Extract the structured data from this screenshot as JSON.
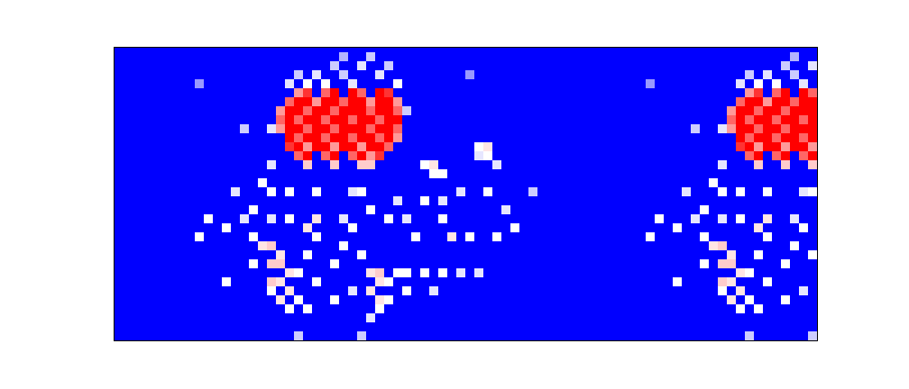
{
  "chart_data": {
    "type": "heatmap",
    "xlim": [
      0,
      78
    ],
    "ylim": [
      0,
      32.6
    ],
    "tick_labels": false,
    "colors": [
      "#0000ff",
      "#ffffff",
      "#ff0000"
    ],
    "color_range": [
      0,
      1
    ],
    "cells": [
      [
        20,
        27,
        0.7
      ],
      [
        21,
        27,
        0.9
      ],
      [
        23,
        27,
        0.8
      ],
      [
        24,
        27,
        1
      ],
      [
        26,
        27,
        1
      ],
      [
        27,
        27,
        0.8
      ],
      [
        29,
        27,
        1
      ],
      [
        30,
        27,
        0.9
      ],
      [
        19,
        26,
        0.8
      ],
      [
        20,
        26,
        1
      ],
      [
        21,
        26,
        1
      ],
      [
        22,
        26,
        0.7
      ],
      [
        23,
        26,
        1
      ],
      [
        24,
        26,
        1
      ],
      [
        25,
        26,
        0.8
      ],
      [
        26,
        26,
        1
      ],
      [
        27,
        26,
        1
      ],
      [
        28,
        26,
        0.7
      ],
      [
        29,
        26,
        1
      ],
      [
        30,
        26,
        1
      ],
      [
        31,
        26,
        0.7
      ],
      [
        18,
        25,
        0.7
      ],
      [
        19,
        25,
        1
      ],
      [
        20,
        25,
        1
      ],
      [
        21,
        25,
        0.8
      ],
      [
        22,
        25,
        1
      ],
      [
        23,
        25,
        1
      ],
      [
        24,
        25,
        0.8
      ],
      [
        25,
        25,
        1
      ],
      [
        26,
        25,
        1
      ],
      [
        27,
        25,
        1
      ],
      [
        28,
        25,
        0.8
      ],
      [
        29,
        25,
        1
      ],
      [
        30,
        25,
        1
      ],
      [
        31,
        25,
        0.8
      ],
      [
        18,
        24,
        0.8
      ],
      [
        19,
        24,
        1
      ],
      [
        20,
        24,
        0.8
      ],
      [
        21,
        24,
        1
      ],
      [
        22,
        24,
        1
      ],
      [
        23,
        24,
        0.8
      ],
      [
        24,
        24,
        1
      ],
      [
        25,
        24,
        1
      ],
      [
        26,
        24,
        0.8
      ],
      [
        27,
        24,
        1
      ],
      [
        28,
        24,
        1
      ],
      [
        29,
        24,
        0.8
      ],
      [
        30,
        24,
        1
      ],
      [
        31,
        24,
        1
      ],
      [
        18,
        23,
        0.7
      ],
      [
        19,
        23,
        1
      ],
      [
        20,
        23,
        1
      ],
      [
        21,
        23,
        0.8
      ],
      [
        22,
        23,
        1
      ],
      [
        23,
        23,
        1
      ],
      [
        24,
        23,
        0.8
      ],
      [
        25,
        23,
        1
      ],
      [
        26,
        23,
        1
      ],
      [
        27,
        23,
        1
      ],
      [
        28,
        23,
        0.8
      ],
      [
        29,
        23,
        1
      ],
      [
        30,
        23,
        1
      ],
      [
        31,
        23,
        0.8
      ],
      [
        19,
        22,
        1
      ],
      [
        20,
        22,
        0.8
      ],
      [
        21,
        22,
        1
      ],
      [
        22,
        22,
        1
      ],
      [
        23,
        22,
        0.8
      ],
      [
        24,
        22,
        1
      ],
      [
        25,
        22,
        1
      ],
      [
        26,
        22,
        0.8
      ],
      [
        27,
        22,
        1
      ],
      [
        28,
        22,
        1
      ],
      [
        29,
        22,
        0.8
      ],
      [
        30,
        22,
        1
      ],
      [
        31,
        22,
        0.7
      ],
      [
        19,
        21,
        0.9
      ],
      [
        20,
        21,
        1
      ],
      [
        21,
        21,
        0.7
      ],
      [
        22,
        21,
        1
      ],
      [
        23,
        21,
        1
      ],
      [
        24,
        21,
        0.7
      ],
      [
        25,
        21,
        1
      ],
      [
        26,
        21,
        1
      ],
      [
        27,
        21,
        0.7
      ],
      [
        28,
        21,
        1
      ],
      [
        29,
        21,
        1
      ],
      [
        30,
        21,
        0.8
      ],
      [
        20,
        20,
        0.8
      ],
      [
        21,
        20,
        1
      ],
      [
        23,
        20,
        0.8
      ],
      [
        24,
        20,
        1
      ],
      [
        26,
        20,
        0.8
      ],
      [
        27,
        20,
        1
      ],
      [
        28,
        20,
        0.7
      ],
      [
        29,
        20,
        0.9
      ],
      [
        21,
        19,
        0.6
      ],
      [
        24,
        19,
        0.6
      ],
      [
        27,
        19,
        0.6
      ],
      [
        28,
        19,
        0.6
      ],
      [
        19,
        28,
        0.45
      ],
      [
        21,
        28,
        0.5
      ],
      [
        23,
        28,
        0.5
      ],
      [
        26,
        28,
        0.45
      ],
      [
        31,
        28,
        0.5
      ],
      [
        20,
        29,
        0.4
      ],
      [
        22,
        29,
        0.45
      ],
      [
        25,
        29,
        0.4
      ],
      [
        29,
        29,
        0.45
      ],
      [
        24,
        30,
        0.4
      ],
      [
        27,
        30,
        0.45
      ],
      [
        30,
        30,
        0.4
      ],
      [
        25,
        31,
        0.35
      ],
      [
        28,
        31,
        0.4
      ],
      [
        32,
        25,
        0.4
      ],
      [
        9,
        28,
        0.3
      ],
      [
        39,
        29,
        0.3
      ],
      [
        14,
        23,
        0.4
      ],
      [
        17,
        23,
        0.45
      ],
      [
        17,
        19,
        0.45
      ],
      [
        16,
        17,
        0.5
      ],
      [
        13,
        16,
        0.45
      ],
      [
        15,
        14,
        0.5
      ],
      [
        10,
        13,
        0.5
      ],
      [
        9,
        11,
        0.5
      ],
      [
        12,
        12,
        0.5
      ],
      [
        14,
        13,
        0.45
      ],
      [
        17,
        16,
        0.5
      ],
      [
        19,
        16,
        0.5
      ],
      [
        22,
        16,
        0.5
      ],
      [
        26,
        16,
        0.45
      ],
      [
        27,
        16,
        0.5
      ],
      [
        31,
        15,
        0.45
      ],
      [
        34,
        15,
        0.5
      ],
      [
        36,
        15,
        0.45
      ],
      [
        38,
        16,
        0.45
      ],
      [
        41,
        16,
        0.5
      ],
      [
        43,
        14,
        0.45
      ],
      [
        46,
        16,
        0.4
      ],
      [
        44,
        12,
        0.5
      ],
      [
        42,
        11,
        0.5
      ],
      [
        39,
        11,
        0.5
      ],
      [
        37,
        11,
        0.55
      ],
      [
        36,
        13,
        0.5
      ],
      [
        33,
        11,
        0.5
      ],
      [
        32,
        13,
        0.45
      ],
      [
        30,
        13,
        0.5
      ],
      [
        28,
        14,
        0.5
      ],
      [
        26,
        12,
        0.5
      ],
      [
        25,
        13,
        0.45
      ],
      [
        22,
        13,
        0.55
      ],
      [
        21,
        12,
        0.55
      ],
      [
        22,
        11,
        0.5
      ],
      [
        19,
        13,
        0.5
      ],
      [
        17,
        13,
        0.45
      ],
      [
        15,
        11,
        0.5
      ],
      [
        12,
        6,
        0.5
      ],
      [
        15,
        8,
        0.5
      ],
      [
        16,
        10,
        0.55
      ],
      [
        17,
        10,
        0.6
      ],
      [
        18,
        9,
        0.55
      ],
      [
        17,
        8,
        0.6
      ],
      [
        18,
        8,
        0.6
      ],
      [
        19,
        7,
        0.55
      ],
      [
        17,
        6,
        0.6
      ],
      [
        18,
        6,
        0.55
      ],
      [
        19,
        5,
        0.55
      ],
      [
        17,
        5,
        0.5
      ],
      [
        18,
        4,
        0.55
      ],
      [
        19,
        3,
        0.5
      ],
      [
        20,
        4,
        0.5
      ],
      [
        20,
        7,
        0.5
      ],
      [
        21,
        9,
        0.5
      ],
      [
        22,
        6,
        0.5
      ],
      [
        24,
        8,
        0.5
      ],
      [
        25,
        10,
        0.5
      ],
      [
        27,
        9,
        0.5
      ],
      [
        26,
        5,
        0.45
      ],
      [
        24,
        4,
        0.5
      ],
      [
        21,
        3,
        0.5
      ],
      [
        28,
        7,
        0.55
      ],
      [
        29,
        7,
        0.6
      ],
      [
        29,
        6,
        0.55
      ],
      [
        30,
        6,
        0.5
      ],
      [
        28,
        5,
        0.55
      ],
      [
        29,
        4,
        0.55
      ],
      [
        30,
        4,
        0.5
      ],
      [
        29,
        3,
        0.5
      ],
      [
        31,
        7,
        0.5
      ],
      [
        32,
        7,
        0.5
      ],
      [
        34,
        7,
        0.5
      ],
      [
        36,
        7,
        0.5
      ],
      [
        38,
        7,
        0.45
      ],
      [
        40,
        7,
        0.45
      ],
      [
        35,
        5,
        0.45
      ],
      [
        32,
        5,
        0.5
      ],
      [
        28,
        2,
        0.45
      ],
      [
        20,
        0,
        0.4
      ],
      [
        27,
        0,
        0.4
      ],
      [
        34,
        19,
        0.5
      ],
      [
        35,
        19,
        0.55
      ],
      [
        35,
        18,
        0.5
      ],
      [
        36,
        18,
        0.5
      ],
      [
        40,
        21,
        0.5
      ],
      [
        41,
        21,
        0.55
      ],
      [
        41,
        20,
        0.5
      ],
      [
        42,
        19,
        0.45
      ],
      [
        40,
        20,
        0.45
      ],
      [
        70,
        27,
        0.7
      ],
      [
        71,
        27,
        0.9
      ],
      [
        73,
        27,
        0.8
      ],
      [
        74,
        27,
        1
      ],
      [
        76,
        27,
        1
      ],
      [
        77,
        27,
        0.8
      ],
      [
        69,
        26,
        0.8
      ],
      [
        70,
        26,
        1
      ],
      [
        71,
        26,
        1
      ],
      [
        72,
        26,
        0.7
      ],
      [
        73,
        26,
        1
      ],
      [
        74,
        26,
        1
      ],
      [
        75,
        26,
        0.8
      ],
      [
        76,
        26,
        1
      ],
      [
        77,
        26,
        1
      ],
      [
        68,
        25,
        0.7
      ],
      [
        69,
        25,
        1
      ],
      [
        70,
        25,
        1
      ],
      [
        71,
        25,
        0.8
      ],
      [
        72,
        25,
        1
      ],
      [
        73,
        25,
        1
      ],
      [
        74,
        25,
        0.8
      ],
      [
        75,
        25,
        1
      ],
      [
        76,
        25,
        1
      ],
      [
        77,
        25,
        1
      ],
      [
        68,
        24,
        0.8
      ],
      [
        69,
        24,
        1
      ],
      [
        70,
        24,
        0.8
      ],
      [
        71,
        24,
        1
      ],
      [
        72,
        24,
        1
      ],
      [
        73,
        24,
        0.8
      ],
      [
        74,
        24,
        1
      ],
      [
        75,
        24,
        1
      ],
      [
        76,
        24,
        0.8
      ],
      [
        77,
        24,
        1
      ],
      [
        68,
        23,
        0.7
      ],
      [
        69,
        23,
        1
      ],
      [
        70,
        23,
        1
      ],
      [
        71,
        23,
        0.8
      ],
      [
        72,
        23,
        1
      ],
      [
        73,
        23,
        1
      ],
      [
        74,
        23,
        0.8
      ],
      [
        75,
        23,
        1
      ],
      [
        76,
        23,
        1
      ],
      [
        77,
        23,
        1
      ],
      [
        69,
        22,
        1
      ],
      [
        70,
        22,
        0.8
      ],
      [
        71,
        22,
        1
      ],
      [
        72,
        22,
        1
      ],
      [
        73,
        22,
        0.8
      ],
      [
        74,
        22,
        1
      ],
      [
        75,
        22,
        1
      ],
      [
        76,
        22,
        0.8
      ],
      [
        77,
        22,
        1
      ],
      [
        69,
        21,
        0.9
      ],
      [
        70,
        21,
        1
      ],
      [
        71,
        21,
        0.7
      ],
      [
        72,
        21,
        1
      ],
      [
        73,
        21,
        1
      ],
      [
        74,
        21,
        0.7
      ],
      [
        75,
        21,
        1
      ],
      [
        76,
        21,
        1
      ],
      [
        77,
        21,
        0.7
      ],
      [
        70,
        20,
        0.8
      ],
      [
        71,
        20,
        1
      ],
      [
        73,
        20,
        0.8
      ],
      [
        74,
        20,
        1
      ],
      [
        76,
        20,
        0.8
      ],
      [
        77,
        20,
        1
      ],
      [
        71,
        19,
        0.6
      ],
      [
        74,
        19,
        0.6
      ],
      [
        77,
        19,
        0.6
      ],
      [
        69,
        28,
        0.45
      ],
      [
        71,
        28,
        0.5
      ],
      [
        73,
        28,
        0.5
      ],
      [
        76,
        28,
        0.45
      ],
      [
        70,
        29,
        0.4
      ],
      [
        72,
        29,
        0.45
      ],
      [
        75,
        29,
        0.4
      ],
      [
        74,
        30,
        0.4
      ],
      [
        77,
        30,
        0.45
      ],
      [
        75,
        31,
        0.35
      ],
      [
        59,
        28,
        0.3
      ],
      [
        64,
        23,
        0.4
      ],
      [
        67,
        23,
        0.45
      ],
      [
        67,
        19,
        0.45
      ],
      [
        66,
        17,
        0.5
      ],
      [
        63,
        16,
        0.45
      ],
      [
        65,
        14,
        0.5
      ],
      [
        60,
        13,
        0.5
      ],
      [
        59,
        11,
        0.5
      ],
      [
        62,
        12,
        0.5
      ],
      [
        64,
        13,
        0.45
      ],
      [
        67,
        16,
        0.5
      ],
      [
        69,
        16,
        0.5
      ],
      [
        72,
        16,
        0.5
      ],
      [
        76,
        16,
        0.45
      ],
      [
        77,
        16,
        0.5
      ],
      [
        76,
        12,
        0.5
      ],
      [
        75,
        13,
        0.45
      ],
      [
        72,
        13,
        0.55
      ],
      [
        71,
        12,
        0.55
      ],
      [
        72,
        11,
        0.5
      ],
      [
        69,
        13,
        0.5
      ],
      [
        67,
        13,
        0.45
      ],
      [
        65,
        11,
        0.5
      ],
      [
        62,
        6,
        0.5
      ],
      [
        65,
        8,
        0.5
      ],
      [
        66,
        10,
        0.55
      ],
      [
        67,
        10,
        0.6
      ],
      [
        68,
        9,
        0.55
      ],
      [
        67,
        8,
        0.6
      ],
      [
        68,
        8,
        0.6
      ],
      [
        69,
        7,
        0.55
      ],
      [
        67,
        6,
        0.6
      ],
      [
        68,
        6,
        0.55
      ],
      [
        69,
        5,
        0.55
      ],
      [
        67,
        5,
        0.5
      ],
      [
        68,
        4,
        0.55
      ],
      [
        69,
        3,
        0.5
      ],
      [
        70,
        4,
        0.5
      ],
      [
        70,
        7,
        0.5
      ],
      [
        71,
        9,
        0.5
      ],
      [
        72,
        6,
        0.5
      ],
      [
        74,
        8,
        0.5
      ],
      [
        75,
        10,
        0.5
      ],
      [
        77,
        9,
        0.5
      ],
      [
        76,
        5,
        0.45
      ],
      [
        74,
        4,
        0.5
      ],
      [
        71,
        3,
        0.5
      ],
      [
        70,
        0,
        0.4
      ],
      [
        77,
        0,
        0.4
      ]
    ]
  }
}
